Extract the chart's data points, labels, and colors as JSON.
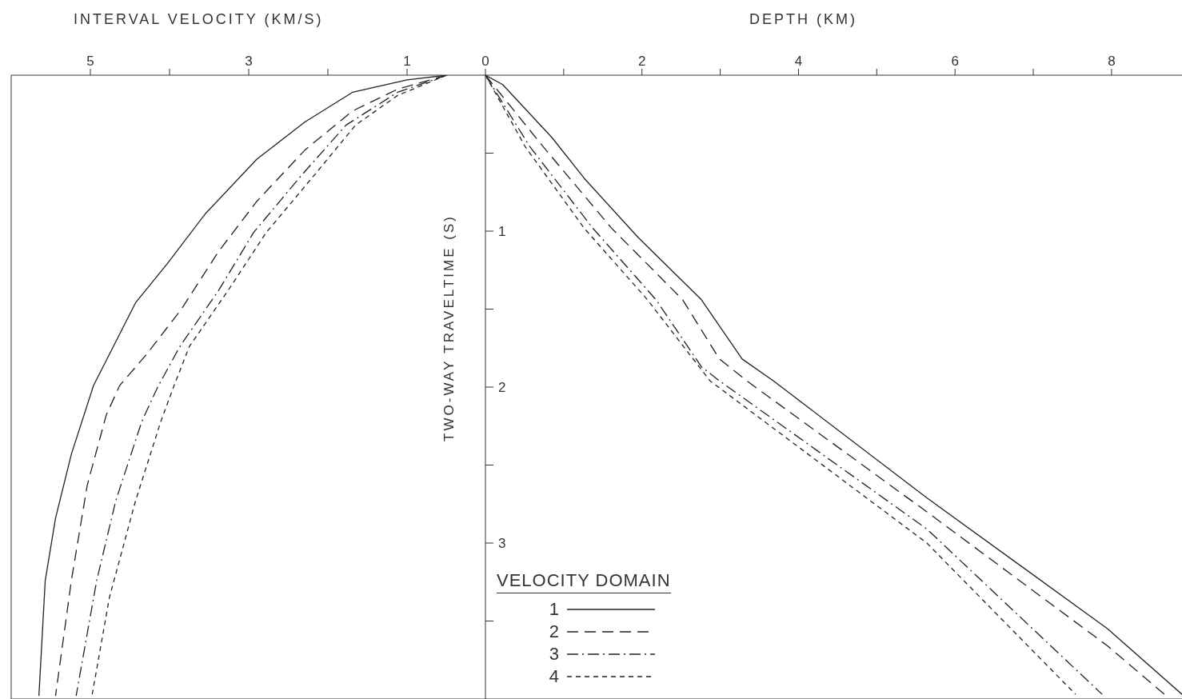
{
  "chart_data": [
    {
      "type": "line",
      "xlabel": "INTERVAL VELOCITY (KM/S)",
      "xlim": [
        6,
        0
      ],
      "xticks": [
        5,
        {
          "value": 4,
          "label": null
        },
        3,
        {
          "value": 2,
          "label": null
        },
        1
      ],
      "ylim": [
        4,
        0
      ],
      "yticks": [
        {
          "value": 0.5,
          "label": null
        },
        {
          "value": 1,
          "label": null
        },
        {
          "value": 1.5,
          "label": null
        },
        {
          "value": 2,
          "label": null
        },
        {
          "value": 2.5,
          "label": null
        },
        {
          "value": 3,
          "label": null
        },
        {
          "value": 3.5,
          "label": null
        }
      ],
      "tick_labels": "x",
      "series": [
        {
          "name": "1",
          "color": "#222222",
          "line_style": "solid",
          "x": [
            0.5,
            1.0,
            1.69,
            2.29,
            2.9,
            3.55,
            4.03,
            4.43,
            4.96,
            5.24,
            5.44,
            5.57,
            5.65
          ],
          "values": [
            0,
            0.03,
            0.11,
            0.3,
            0.54,
            0.89,
            1.21,
            1.46,
            1.99,
            2.43,
            2.84,
            3.24,
            3.98
          ]
        },
        {
          "name": "2",
          "color": "#222222",
          "line_style": "dashed",
          "x": [
            0.5,
            1.12,
            1.69,
            2.29,
            2.9,
            3.38,
            3.85,
            4.29,
            4.63,
            4.8,
            5.04,
            5.24,
            5.44
          ],
          "values": [
            0,
            0.09,
            0.23,
            0.48,
            0.81,
            1.13,
            1.5,
            1.79,
            1.99,
            2.18,
            2.63,
            3.24,
            3.98
          ]
        },
        {
          "name": "3",
          "color": "#222222",
          "line_style": "dashdot",
          "x": [
            0.5,
            1.12,
            1.77,
            2.33,
            2.94,
            3.38,
            3.87,
            4.15,
            4.35,
            4.68,
            4.92,
            5.18
          ],
          "values": [
            0,
            0.11,
            0.32,
            0.64,
            1.01,
            1.38,
            1.74,
            2.0,
            2.22,
            2.73,
            3.24,
            3.98
          ]
        },
        {
          "name": "4",
          "color": "#222222",
          "line_style": "dotted",
          "x": [
            0.5,
            1.12,
            1.65,
            2.17,
            2.78,
            3.26,
            3.75,
            3.95,
            4.11,
            4.43,
            4.76,
            4.98
          ],
          "values": [
            0,
            0.13,
            0.32,
            0.64,
            1.01,
            1.38,
            1.74,
            2.0,
            2.22,
            2.73,
            3.35,
            3.98
          ]
        }
      ]
    },
    {
      "type": "line",
      "xlabel": "DEPTH (KM)",
      "ylabel": "TWO-WAY TRAVELTIME (S)",
      "legend_title": "VELOCITY DOMAIN",
      "legend": "bottom left",
      "xlim": [
        0,
        8.9
      ],
      "xticks": [
        0,
        {
          "value": 1,
          "label": null
        },
        2,
        {
          "value": 3,
          "label": null
        },
        4,
        {
          "value": 5,
          "label": null
        },
        6,
        {
          "value": 7,
          "label": null
        },
        8
      ],
      "ylim": [
        4,
        0
      ],
      "yticks": [
        {
          "value": 0.5,
          "label": null
        },
        1,
        {
          "value": 1.5,
          "label": null
        },
        2,
        {
          "value": 2.5,
          "label": null
        },
        3,
        {
          "value": 3.5,
          "label": null
        }
      ],
      "series": [
        {
          "name": "1",
          "color": "#222222",
          "line_style": "solid",
          "x": [
            0,
            0.22,
            0.85,
            1.26,
            1.95,
            2.76,
            3.28,
            3.68,
            5.64,
            7.95,
            8.9
          ],
          "values": [
            0,
            0.06,
            0.4,
            0.66,
            1.04,
            1.44,
            1.82,
            1.96,
            2.71,
            3.55,
            3.97
          ]
        },
        {
          "name": "2",
          "color": "#222222",
          "line_style": "dashed",
          "x": [
            0,
            0.74,
            1.61,
            2.52,
            2.99,
            3.34,
            5.64,
            7.95,
            8.7
          ],
          "values": [
            0,
            0.46,
            0.98,
            1.44,
            1.82,
            1.96,
            2.8,
            3.66,
            3.98
          ]
        },
        {
          "name": "3",
          "color": "#222222",
          "line_style": "dashdot",
          "x": [
            0,
            0.57,
            1.37,
            2.18,
            2.76,
            2.99,
            5.64,
            7.88
          ],
          "values": [
            0,
            0.46,
            0.98,
            1.44,
            1.87,
            1.96,
            2.91,
            3.97
          ]
        },
        {
          "name": "4",
          "color": "#222222",
          "line_style": "dotted",
          "x": [
            0,
            0.51,
            1.26,
            2.07,
            2.87,
            5.64,
            7.54
          ],
          "values": [
            0,
            0.46,
            0.98,
            1.44,
            1.96,
            3.0,
            3.97
          ]
        }
      ]
    }
  ]
}
